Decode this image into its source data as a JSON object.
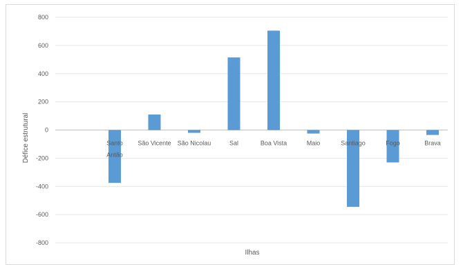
{
  "chart_data": {
    "type": "bar",
    "title": "",
    "xlabel": "Ilhas",
    "ylabel": "Défice estrutural",
    "categories": [
      [
        "Santo",
        "Antão"
      ],
      [
        "São Vicente"
      ],
      [
        "São Nicolau"
      ],
      [
        "Sal"
      ],
      [
        "Boa Vista"
      ],
      [
        "Maio"
      ],
      [
        "Santiago"
      ],
      [
        "Fogo"
      ],
      [
        "Brava"
      ]
    ],
    "values": [
      -375,
      110,
      -20,
      515,
      705,
      -25,
      -545,
      -230,
      -35
    ],
    "ylim": [
      -800,
      800
    ],
    "yticks": [
      -800,
      -600,
      -400,
      -200,
      0,
      200,
      400,
      600,
      800
    ],
    "grid": true,
    "bar_color": "#5b9bd5",
    "grid_color": "#e6e6e6"
  }
}
